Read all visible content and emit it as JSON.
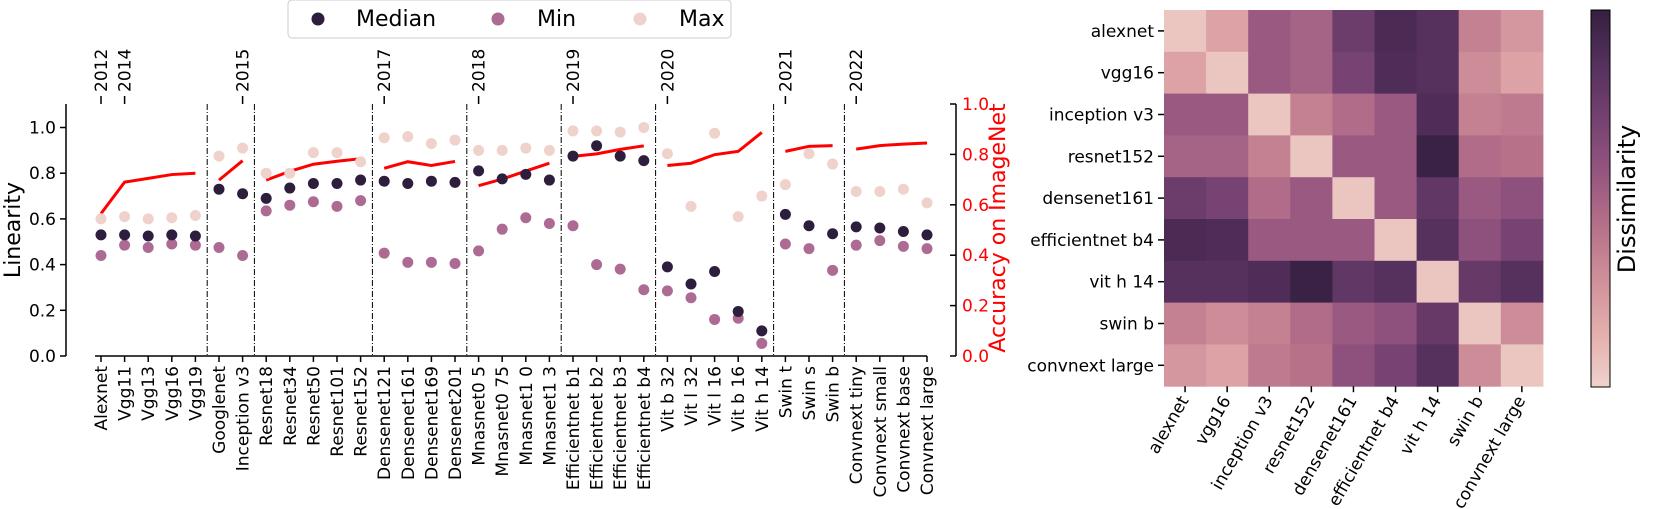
{
  "legend": {
    "items": [
      {
        "label": "Median",
        "color": "#2d1e3e"
      },
      {
        "label": "Min",
        "color": "#ad6a93"
      },
      {
        "label": "Max",
        "color": "#efd2cc"
      }
    ]
  },
  "colors": {
    "accuracy_line": "#ff0000",
    "axis": "#000000",
    "separator": "#000000"
  },
  "chart_data": [
    {
      "type": "scatter",
      "ylabel": "Linearity",
      "y2label": "Accuracy on ImageNet",
      "ylim": [
        0,
        1.05
      ],
      "y2lim": [
        0,
        1.0
      ],
      "yticks": [
        "0.0",
        "0.2",
        "0.4",
        "0.6",
        "0.8",
        "1.0"
      ],
      "y2ticks": [
        "0.0",
        "0.2",
        "0.4",
        "0.6",
        "0.8",
        "1.0"
      ],
      "categories": [
        "Alexnet",
        "Vgg11",
        "Vgg13",
        "Vgg16",
        "Vgg19",
        "Googlenet",
        "Inception v3",
        "Resnet18",
        "Resnet34",
        "Resnet50",
        "Resnet101",
        "Resnet152",
        "Densenet121",
        "Densenet161",
        "Densenet169",
        "Densenet201",
        "Mnasnet0 5",
        "Mnasnet0 75",
        "Mnasnet1 0",
        "Mnasnet1 3",
        "Efficientnet b1",
        "Efficientnet b2",
        "Efficientnet b3",
        "Efficientnet b4",
        "Vit b 32",
        "Vit l 32",
        "Vit l 16",
        "Vit b 16",
        "Vit h 14",
        "Swin t",
        "Swin s",
        "Swin b",
        "Convnext tiny",
        "Convnext small",
        "Convnext base",
        "Convnext large"
      ],
      "series": [
        {
          "name": "Median",
          "values": [
            0.53,
            0.53,
            0.525,
            0.53,
            0.525,
            0.73,
            0.71,
            0.69,
            0.735,
            0.755,
            0.755,
            0.77,
            0.765,
            0.755,
            0.765,
            0.76,
            0.81,
            0.775,
            0.795,
            0.77,
            0.875,
            0.92,
            0.875,
            0.855,
            0.39,
            0.315,
            0.37,
            0.195,
            0.11,
            0.62,
            0.57,
            0.535,
            0.565,
            0.56,
            0.545,
            0.53
          ]
        },
        {
          "name": "Min",
          "values": [
            0.44,
            0.485,
            0.475,
            0.49,
            0.485,
            0.475,
            0.44,
            0.635,
            0.66,
            0.675,
            0.655,
            0.68,
            0.45,
            0.41,
            0.41,
            0.405,
            0.46,
            0.555,
            0.605,
            0.58,
            0.57,
            0.4,
            0.38,
            0.29,
            0.285,
            0.255,
            0.16,
            0.165,
            0.055,
            0.49,
            0.47,
            0.375,
            0.485,
            0.505,
            0.48,
            0.47
          ]
        },
        {
          "name": "Max",
          "values": [
            0.6,
            0.61,
            0.6,
            0.605,
            0.615,
            0.875,
            0.91,
            0.8,
            0.8,
            0.89,
            0.89,
            0.85,
            0.955,
            0.96,
            0.93,
            0.945,
            0.9,
            0.9,
            0.91,
            0.9,
            0.985,
            0.985,
            0.98,
            1.0,
            0.885,
            0.655,
            0.975,
            0.61,
            0.7,
            0.75,
            0.885,
            0.84,
            0.72,
            0.72,
            0.73,
            0.67
          ]
        }
      ],
      "accuracy": [
        {
          "models": [
            0,
            4
          ],
          "values": [
            0.565,
            0.69,
            0.705,
            0.72,
            0.725
          ]
        },
        {
          "models": [
            5,
            6
          ],
          "values": [
            0.698,
            0.775
          ]
        },
        {
          "models": [
            7,
            11
          ],
          "values": [
            0.698,
            0.733,
            0.761,
            0.773,
            0.783
          ]
        },
        {
          "models": [
            12,
            15
          ],
          "values": [
            0.745,
            0.771,
            0.756,
            0.772
          ]
        },
        {
          "models": [
            16,
            19
          ],
          "values": [
            0.676,
            0.702,
            0.734,
            0.765
          ]
        },
        {
          "models": [
            20,
            23
          ],
          "values": [
            0.792,
            0.802,
            0.82,
            0.834
          ]
        },
        {
          "models": [
            24,
            28
          ],
          "values": [
            0.756,
            0.765,
            0.799,
            0.812,
            0.887
          ]
        },
        {
          "models": [
            29,
            31
          ],
          "values": [
            0.812,
            0.832,
            0.835
          ]
        },
        {
          "models": [
            32,
            35
          ],
          "values": [
            0.821,
            0.835,
            0.841,
            0.845
          ]
        }
      ],
      "years": [
        {
          "label": "2012",
          "model": 0
        },
        {
          "label": "2014",
          "model": 1
        },
        {
          "label": "2015",
          "model": 6
        },
        {
          "label": "2017",
          "model": 12
        },
        {
          "label": "2018",
          "model": 16
        },
        {
          "label": "2019",
          "model": 20
        },
        {
          "label": "2020",
          "model": 24
        },
        {
          "label": "2021",
          "model": 29
        },
        {
          "label": "2022",
          "model": 32
        }
      ],
      "separators_after": [
        4,
        6,
        11,
        15,
        19,
        23,
        28,
        31
      ],
      "grid": false,
      "legend_position": "top-center"
    },
    {
      "type": "heatmap",
      "colorbar_label": "Dissimilarity",
      "colorbar_ticks": false,
      "labels": [
        "alexnet",
        "vgg16",
        "inception v3",
        "resnet152",
        "densenet161",
        "efficientnet b4",
        "vit h 14",
        "swin b",
        "convnext large"
      ],
      "matrix": [
        [
          0.05,
          0.2,
          0.55,
          0.5,
          0.75,
          0.9,
          0.85,
          0.35,
          0.25
        ],
        [
          0.2,
          0.05,
          0.55,
          0.5,
          0.7,
          0.88,
          0.85,
          0.3,
          0.2
        ],
        [
          0.55,
          0.55,
          0.05,
          0.35,
          0.45,
          0.55,
          0.88,
          0.35,
          0.38
        ],
        [
          0.5,
          0.5,
          0.35,
          0.05,
          0.55,
          0.55,
          0.98,
          0.45,
          0.42
        ],
        [
          0.75,
          0.7,
          0.45,
          0.55,
          0.05,
          0.55,
          0.8,
          0.55,
          0.6
        ],
        [
          0.9,
          0.88,
          0.55,
          0.55,
          0.55,
          0.05,
          0.85,
          0.6,
          0.7
        ],
        [
          0.85,
          0.85,
          0.88,
          0.98,
          0.8,
          0.85,
          0.05,
          0.78,
          0.85
        ],
        [
          0.35,
          0.3,
          0.35,
          0.45,
          0.55,
          0.6,
          0.78,
          0.05,
          0.3
        ],
        [
          0.25,
          0.2,
          0.38,
          0.42,
          0.6,
          0.7,
          0.85,
          0.3,
          0.05
        ]
      ],
      "colormap": [
        "#efd2cc",
        "#e4afac",
        "#cf8f9a",
        "#b57089",
        "#955580",
        "#744170",
        "#55305d",
        "#34203f"
      ]
    }
  ]
}
